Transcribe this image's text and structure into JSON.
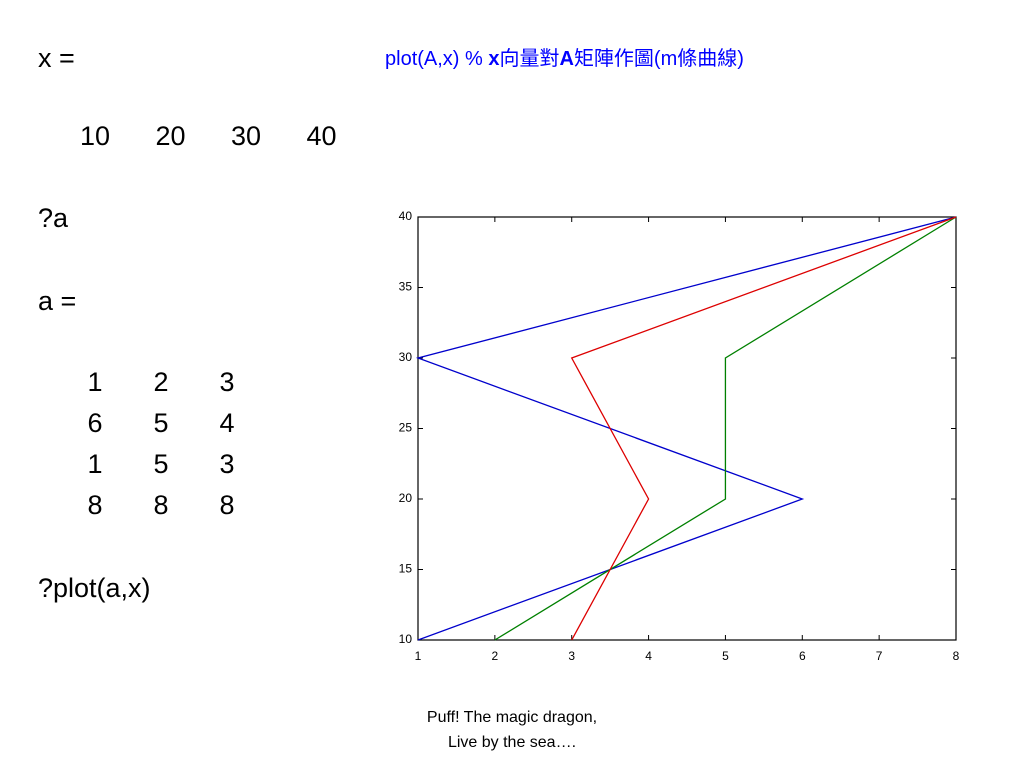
{
  "document": {
    "x_label": "x =",
    "x_vector": [
      10,
      20,
      30,
      40
    ],
    "cmd_a": "?a",
    "a_label": "a =",
    "a_matrix": [
      [
        1,
        2,
        3
      ],
      [
        6,
        5,
        4
      ],
      [
        1,
        5,
        3
      ],
      [
        8,
        8,
        8
      ]
    ],
    "cmd_plot": "?plot(a,x)",
    "title": [
      "plot(A,x) % ",
      "x",
      "向量對",
      "A",
      "矩陣作圖(m條曲線)"
    ],
    "caption": [
      "Puff! The magic dragon,",
      "Live by the sea…."
    ]
  },
  "chart_data": {
    "type": "line",
    "y": [
      10,
      20,
      30,
      40
    ],
    "series": [
      {
        "color": "#0000cc",
        "x": [
          1,
          6,
          1,
          8
        ]
      },
      {
        "color": "#008000",
        "x": [
          2,
          5,
          5,
          8
        ]
      },
      {
        "color": "#dd0000",
        "x": [
          3,
          4,
          3,
          8
        ]
      }
    ],
    "xlim": [
      1,
      8
    ],
    "xticks": [
      1,
      2,
      3,
      4,
      5,
      6,
      7,
      8
    ],
    "ylim": [
      10,
      40
    ],
    "yticks": [
      10,
      15,
      20,
      25,
      30,
      35,
      40
    ],
    "grid": false
  }
}
